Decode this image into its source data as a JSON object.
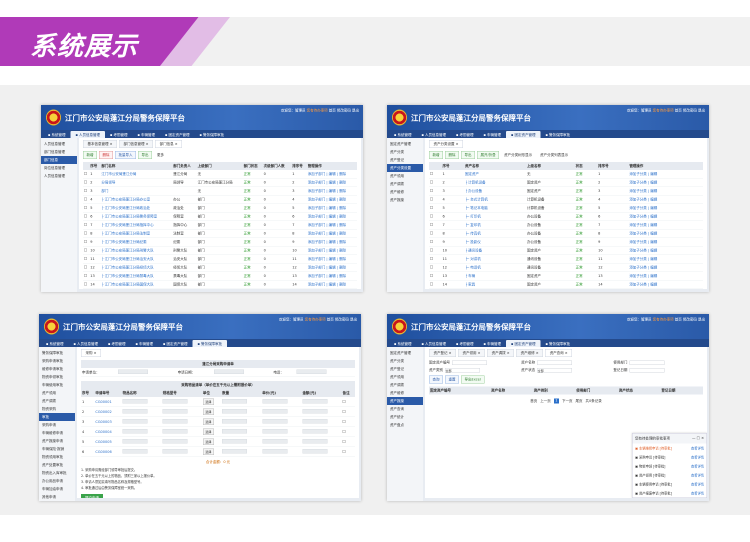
{
  "banner": {
    "title": "系统展示",
    "accent": "#b03ab8"
  },
  "app": {
    "title": "江门市公安局蓬江分局警务保障平台",
    "user_info": "欢迎您：管理员",
    "user_warn": "您有待办事项",
    "user_links": "首页  修改密码  退出",
    "nav": [
      "系统管理",
      "人员信息管理",
      "考勤管理",
      "车辆管理",
      "固定资产管理",
      "警务保障审批"
    ],
    "brand_color": "#2a5aa8"
  },
  "shots": [
    {
      "nav_active": 1,
      "sidebar": [
        "人员信息管理",
        "部门信息管理",
        "部门信息",
        "岗位信息管理",
        "人员信息管理"
      ],
      "side_active": 2,
      "tabs": [
        "基本信息管理",
        "部门信息管理",
        "部门信息"
      ],
      "buttons": [
        {
          "label": "新增",
          "style": ""
        },
        {
          "label": "删除",
          "style": "red"
        },
        {
          "label": "批量导入",
          "style": "blue"
        },
        {
          "label": "导出",
          "style": ""
        },
        {
          "label": "更多",
          "style": "plain"
        }
      ],
      "columns": [
        "",
        "序号",
        "部门名称",
        "部门负责人",
        "上级部门",
        "部门状态",
        "次级部门人数",
        "排序号",
        "管理操作"
      ],
      "rows": [
        [
          "1",
          "江门市公安局蓬江分局",
          "蓬江分局",
          "无",
          "正常",
          "0",
          "1",
          "添加子部门 | 编辑 | 删除"
        ],
        [
          "2",
          "分局领导",
          "局领导",
          "江门市公安局蓬江分局",
          "正常",
          "0",
          "2",
          "添加子部门 | 编辑 | 删除"
        ],
        [
          "3",
          "部门",
          "",
          "无",
          "正常",
          "0",
          "3",
          "添加子部门 | 编辑 | 删除"
        ],
        [
          "4",
          "├ 江门市公安局蓬江分局办公室",
          "办公",
          "部门",
          "正常",
          "0",
          "4",
          "添加子部门 | 编辑 | 删除"
        ],
        [
          "5",
          "├ 江门市公安局蓬江分局政治处",
          "政治处",
          "部门",
          "正常",
          "0",
          "5",
          "添加子部门 | 编辑 | 删除"
        ],
        [
          "6",
          "├ 江门市公安局蓬江分局警务保障室",
          "保障室",
          "部门",
          "正常",
          "0",
          "6",
          "添加子部门 | 编辑 | 删除"
        ],
        [
          "7",
          "├ 江门市公安局蓬江分局指挥中心",
          "指挥中心",
          "部门",
          "正常",
          "0",
          "7",
          "添加子部门 | 编辑 | 删除"
        ],
        [
          "8",
          "├ 江门市公安局蓬江分局法制室",
          "法制室",
          "部门",
          "正常",
          "0",
          "8",
          "添加子部门 | 编辑 | 删除"
        ],
        [
          "9",
          "├ 江门市公安局蓬江分局纪委",
          "纪委",
          "部门",
          "正常",
          "0",
          "9",
          "添加子部门 | 编辑 | 删除"
        ],
        [
          "10",
          "├ 江门市公安局蓬江分局刑警大队",
          "刑警大队",
          "部门",
          "正常",
          "0",
          "10",
          "添加子部门 | 编辑 | 删除"
        ],
        [
          "11",
          "├ 江门市公安局蓬江分局治安大队",
          "治安大队",
          "部门",
          "正常",
          "0",
          "11",
          "添加子部门 | 编辑 | 删除"
        ],
        [
          "12",
          "├ 江门市公安局蓬江分局经侦大队",
          "经侦大队",
          "部门",
          "正常",
          "0",
          "12",
          "添加子部门 | 编辑 | 删除"
        ],
        [
          "13",
          "├ 江门市公安局蓬江分局禁毒大队",
          "禁毒大队",
          "部门",
          "正常",
          "0",
          "13",
          "添加子部门 | 编辑 | 删除"
        ],
        [
          "14",
          "├ 江门市公安局蓬江分局国保大队",
          "国保大队",
          "部门",
          "正常",
          "0",
          "14",
          "添加子部门 | 编辑 | 删除"
        ]
      ]
    },
    {
      "nav_active": 4,
      "sidebar": [
        "固定资产管理",
        "资产分类",
        "资产登记",
        "资产分类设置",
        "资产领用",
        "资产调拨",
        "资产维修",
        "资产报废"
      ],
      "side_active": 3,
      "tabs": [
        "资产分类设置"
      ],
      "buttons": [
        {
          "label": "新增",
          "style": ""
        },
        {
          "label": "删除",
          "style": ""
        },
        {
          "label": "导出",
          "style": ""
        },
        {
          "label": "展开/折叠",
          "style": ""
        },
        {
          "label": "资产分类树形显示",
          "style": "plain"
        },
        {
          "label": "资产分类列表显示",
          "style": "plain"
        }
      ],
      "columns": [
        "",
        "序号",
        "资产名称",
        "上级名称",
        "状态",
        "排序号",
        "管理操作"
      ],
      "rows": [
        [
          "1",
          "固定资产",
          "无",
          "正常",
          "1",
          "添加子分类 | 编辑"
        ],
        [
          "2",
          "├ 计算机设备",
          "固定资产",
          "正常",
          "2",
          "添加子分类 | 编辑"
        ],
        [
          "3",
          "├ 办公设备",
          "固定资产",
          "正常",
          "3",
          "添加子分类 | 编辑"
        ],
        [
          "4",
          "├─ 台式计算机",
          "计算机设备",
          "正常",
          "4",
          "添加子分类 | 编辑"
        ],
        [
          "5",
          "├─ 笔记本电脑",
          "计算机设备",
          "正常",
          "5",
          "添加子分类 | 编辑"
        ],
        [
          "6",
          "├─ 打印机",
          "办公设备",
          "正常",
          "6",
          "添加子分类 | 编辑"
        ],
        [
          "7",
          "├─ 复印机",
          "办公设备",
          "正常",
          "7",
          "添加子分类 | 编辑"
        ],
        [
          "8",
          "├─ 传真机",
          "办公设备",
          "正常",
          "8",
          "添加子分类 | 编辑"
        ],
        [
          "9",
          "├─ 投影仪",
          "办公设备",
          "正常",
          "9",
          "添加子分类 | 编辑"
        ],
        [
          "10",
          "├ 通讯设备",
          "固定资产",
          "正常",
          "10",
          "添加子分类 | 编辑"
        ],
        [
          "11",
          "├─ 对讲机",
          "通讯设备",
          "正常",
          "11",
          "添加子分类 | 编辑"
        ],
        [
          "12",
          "├─ 电话机",
          "通讯设备",
          "正常",
          "12",
          "添加子分类 | 编辑"
        ],
        [
          "13",
          "├ 车辆",
          "固定资产",
          "正常",
          "13",
          "添加子分类 | 编辑"
        ],
        [
          "14",
          "├ 家具",
          "固定资产",
          "正常",
          "14",
          "添加子分类 | 编辑"
        ]
      ]
    },
    {
      "nav_active": 5,
      "sidebar": [
        "警务保障审批",
        "采购申请审批",
        "维修申请审批",
        "物资申领审批",
        "车辆使用审批",
        "资产领用",
        "资产调拨",
        "物资采购",
        "审批",
        "采购申请",
        "车辆维修申请",
        "资产报废申请",
        "车辆保险·报销",
        "物资领用审批",
        "资产处置审批",
        "物资出入库审批",
        "办公用品申请",
        "车辆加油申请",
        "其他申请"
      ],
      "side_active": 8,
      "tabs": [
        "采购"
      ],
      "form_title": "蓬江分局采购申请单",
      "form_fields": [
        "申请单位：",
        "申请日期：",
        "电话："
      ],
      "item_title": "采购物品清单（单价在五千元以上需附报价单）",
      "columns": [
        "序号",
        "申请单号",
        "物品名称",
        "规格型号",
        "单位",
        "数量",
        "单价(元)",
        "金额(元)",
        "备注"
      ],
      "rows": [
        [
          "1",
          "CG00001"
        ],
        [
          "2",
          "CG00002"
        ],
        [
          "3",
          "CG00003"
        ],
        [
          "4",
          "CG00004"
        ],
        [
          "5",
          "CG00005"
        ],
        [
          "6",
          "CG00006"
        ]
      ],
      "select_label": "选择",
      "total": "合计金额：0 元",
      "notes": [
        "1. 采购申请需经部门领导审批后提交。",
        "2. 单价在五千元以上的物品，须附三家以上报价单。",
        "3. 申请人须如实填写物品名称及规格型号。",
        "4. 审批通过后由警务保障室统一采购。"
      ],
      "submit": "提交申请"
    },
    {
      "nav_active": 4,
      "sidebar": [
        "固定资产管理",
        "资产分类",
        "资产登记",
        "资产领用",
        "资产调拨",
        "资产维修",
        "资产报废",
        "资产查询",
        "资产统计",
        "资产盘点"
      ],
      "side_active": 6,
      "tabs": [
        "资产登记",
        "资产领用",
        "资产调拨",
        "资产维修",
        "资产查询"
      ],
      "search": [
        {
          "label": "固定资产编号",
          "value": ""
        },
        {
          "label": "资产名称",
          "value": ""
        },
        {
          "label": "使用部门",
          "value": ""
        },
        {
          "label": "资产类别",
          "value": "全部"
        },
        {
          "label": "资产状态",
          "value": "全部"
        },
        {
          "label": "登记日期",
          "value": ""
        }
      ],
      "buttons": [
        {
          "label": "查询",
          "style": "blue"
        },
        {
          "label": "重置",
          "style": "blue"
        },
        {
          "label": "导出Excel",
          "style": ""
        }
      ],
      "columns": [
        "固定资产编号",
        "资产名称",
        "资产类别",
        "使用部门",
        "资产状态",
        "登记日期"
      ],
      "pager": [
        "首页",
        "上一页",
        "1",
        "下一页",
        "尾页",
        "共0条记录"
      ],
      "popup": {
        "title": "您有待处理的审批事项",
        "items": [
          "车辆维修申请 [待审批]",
          "采购申请 [待审批]",
          "物资申领 [待审批]",
          "资产领用 [待审批]",
          "车辆使用申请 [待审批]",
          "资产报废申请 [待审批]"
        ],
        "link": "查看详情"
      }
    }
  ]
}
